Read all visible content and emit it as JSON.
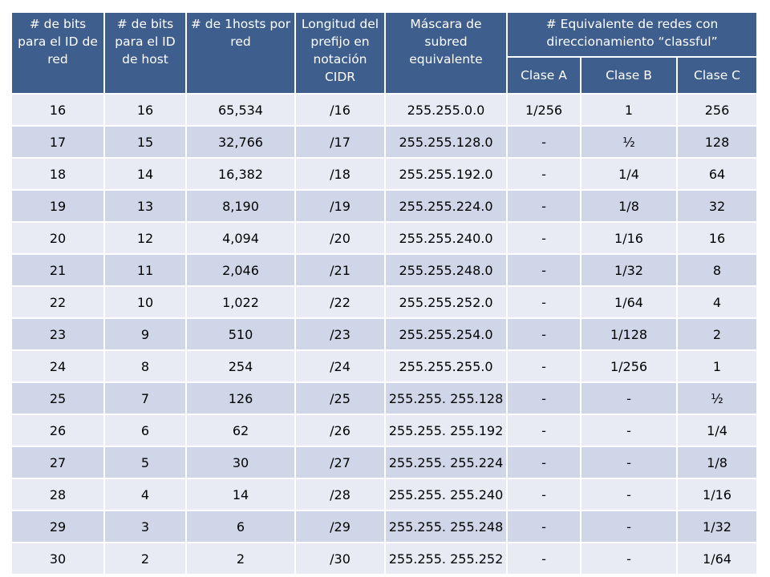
{
  "table": {
    "headers": {
      "net_bits": "# de bits para el ID de red",
      "host_bits": "# de bits para el ID de host",
      "hosts": "# de 1hosts por red",
      "prefix": "Longitud del prefijo en notación CIDR",
      "mask": "Máscara de subred equivalente",
      "classful": "# Equivalente de redes con direccionamiento “classful”",
      "class_a": "Clase A",
      "class_b": "Clase B",
      "class_c": "Clase C"
    },
    "rows": [
      [
        "16",
        "16",
        "65,534",
        "/16",
        "255.255.0.0",
        "1/256",
        "1",
        "256"
      ],
      [
        "17",
        "15",
        "32,766",
        "/17",
        "255.255.128.0",
        "-",
        "½",
        "128"
      ],
      [
        "18",
        "14",
        "16,382",
        "/18",
        "255.255.192.0",
        "-",
        "1/4",
        "64"
      ],
      [
        "19",
        "13",
        "8,190",
        "/19",
        "255.255.224.0",
        "-",
        "1/8",
        "32"
      ],
      [
        "20",
        "12",
        "4,094",
        "/20",
        "255.255.240.0",
        "-",
        "1/16",
        "16"
      ],
      [
        "21",
        "11",
        "2,046",
        "/21",
        "255.255.248.0",
        "-",
        "1/32",
        "8"
      ],
      [
        "22",
        "10",
        "1,022",
        "/22",
        "255.255.252.0",
        "-",
        "1/64",
        "4"
      ],
      [
        "23",
        "9",
        "510",
        "/23",
        "255.255.254.0",
        "-",
        "1/128",
        "2"
      ],
      [
        "24",
        "8",
        "254",
        "/24",
        "255.255.255.0",
        "-",
        "1/256",
        "1"
      ],
      [
        "25",
        "7",
        "126",
        "/25",
        "255.255. 255.128",
        "-",
        "-",
        "½"
      ],
      [
        "26",
        "6",
        "62",
        "/26",
        "255.255. 255.192",
        "-",
        "-",
        "1/4"
      ],
      [
        "27",
        "5",
        "30",
        "/27",
        "255.255. 255.224",
        "-",
        "-",
        "1/8"
      ],
      [
        "28",
        "4",
        "14",
        "/28",
        "255.255. 255.240",
        "-",
        "-",
        "1/16"
      ],
      [
        "29",
        "3",
        "6",
        "/29",
        "255.255. 255.248",
        "-",
        "-",
        "1/32"
      ],
      [
        "30",
        "2",
        "2",
        "/30",
        "255.255. 255.252",
        "-",
        "-",
        "1/64"
      ]
    ]
  },
  "colors": {
    "header_bg": "#3e5e8e",
    "row_light": "#e8ebf4",
    "row_dark": "#cfd6e8"
  }
}
